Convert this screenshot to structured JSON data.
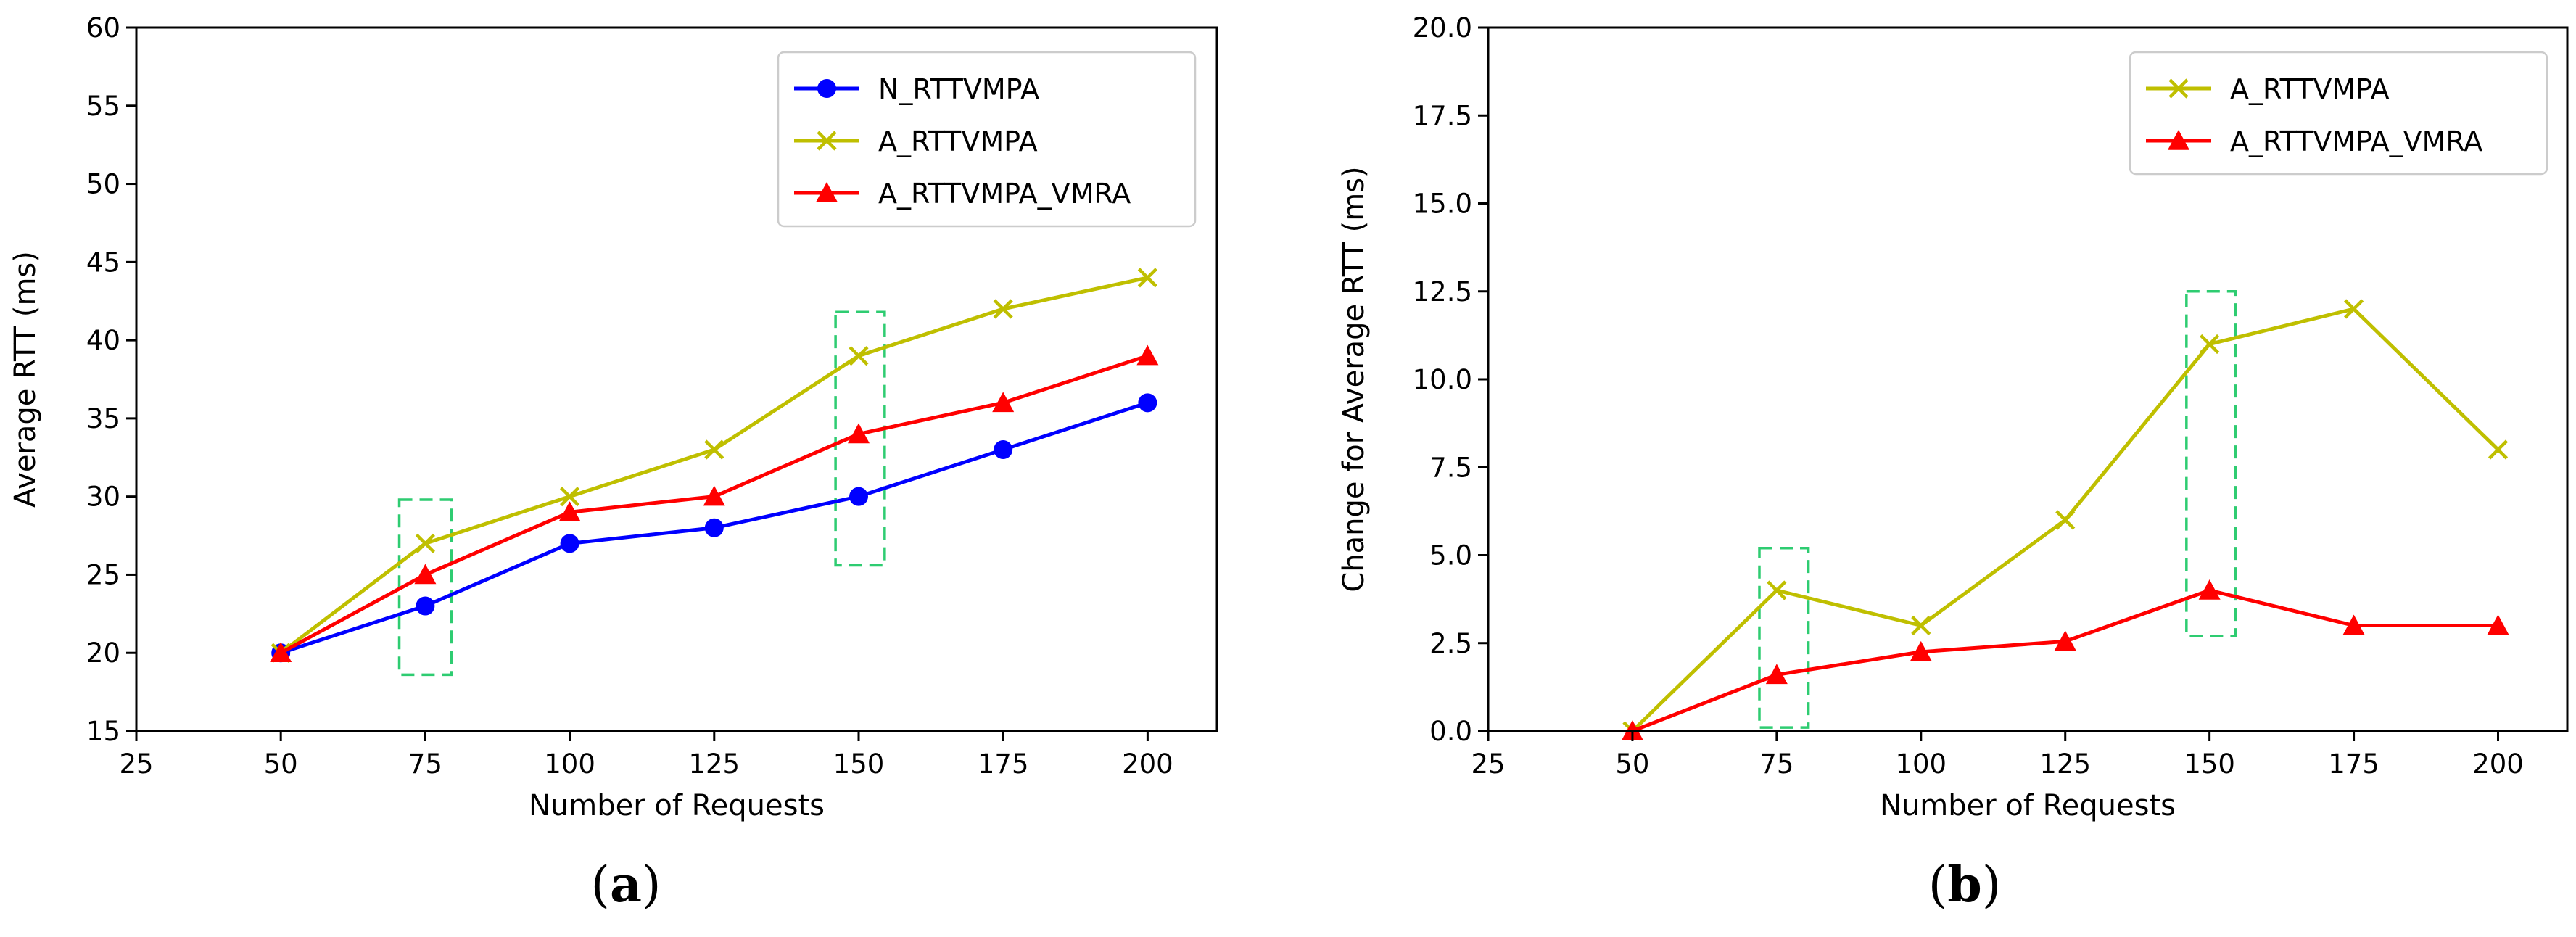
{
  "chart_data": [
    {
      "type": "line",
      "panel_label": "a",
      "xlabel": "Number of Requests",
      "ylabel": "Average RTT (ms)",
      "xlim": [
        25,
        212
      ],
      "ylim": [
        15,
        60
      ],
      "xticks": [
        25,
        50,
        75,
        100,
        125,
        150,
        175,
        200
      ],
      "yticks": [
        15,
        20,
        25,
        30,
        35,
        40,
        45,
        50,
        55,
        60
      ],
      "ytick_labels": [
        "15",
        "20",
        "25",
        "30",
        "35",
        "40",
        "45",
        "50",
        "55",
        "60"
      ],
      "grid": false,
      "legend_position": "top-right",
      "x": [
        50,
        75,
        100,
        125,
        150,
        175,
        200
      ],
      "series": [
        {
          "name": "N_RTTVMPA",
          "color": "#0000ff",
          "marker": "circle",
          "values": [
            20,
            23,
            27,
            28,
            30,
            33,
            36
          ]
        },
        {
          "name": "A_RTTVMPA",
          "color": "#bfbf00",
          "marker": "x",
          "values": [
            20,
            27,
            30,
            33,
            39,
            42,
            44
          ]
        },
        {
          "name": "A_RTTVMPA_VMRA",
          "color": "#ff0000",
          "marker": "triangle",
          "values": [
            20,
            25,
            29,
            30,
            34,
            36,
            39
          ]
        }
      ],
      "highlight_boxes": [
        {
          "x_range": [
            70.5,
            79.5
          ],
          "y_range": [
            18.6,
            29.8
          ]
        },
        {
          "x_range": [
            146,
            154.5
          ],
          "y_range": [
            25.6,
            41.8
          ]
        }
      ]
    },
    {
      "type": "line",
      "panel_label": "b",
      "xlabel": "Number of Requests",
      "ylabel": "Change for Average RTT (ms)",
      "xlim": [
        25,
        212
      ],
      "ylim": [
        0,
        20
      ],
      "xticks": [
        25,
        50,
        75,
        100,
        125,
        150,
        175,
        200
      ],
      "yticks": [
        0,
        2.5,
        5,
        7.5,
        10,
        12.5,
        15,
        17.5,
        20
      ],
      "ytick_labels": [
        "0.0",
        "2.5",
        "5.0",
        "7.5",
        "10.0",
        "12.5",
        "15.0",
        "17.5",
        "20.0"
      ],
      "grid": false,
      "legend_position": "top-right",
      "x": [
        50,
        75,
        100,
        125,
        150,
        175,
        200
      ],
      "series": [
        {
          "name": "A_RTTVMPA",
          "color": "#bfbf00",
          "marker": "x",
          "values": [
            0,
            4,
            3,
            6,
            11,
            12,
            8
          ]
        },
        {
          "name": "A_RTTVMPA_VMRA",
          "color": "#ff0000",
          "marker": "triangle",
          "values": [
            0,
            1.6,
            2.25,
            2.55,
            4,
            3,
            3
          ]
        }
      ],
      "highlight_boxes": [
        {
          "x_range": [
            72,
            80.5
          ],
          "y_range": [
            0.1,
            5.2
          ]
        },
        {
          "x_range": [
            146,
            154.5
          ],
          "y_range": [
            2.7,
            12.5
          ]
        }
      ]
    }
  ],
  "captions": {
    "a": "a",
    "b": "b"
  },
  "colors": {
    "axis": "#000000",
    "highlight_box": "#2ecc71",
    "background": "#ffffff"
  }
}
